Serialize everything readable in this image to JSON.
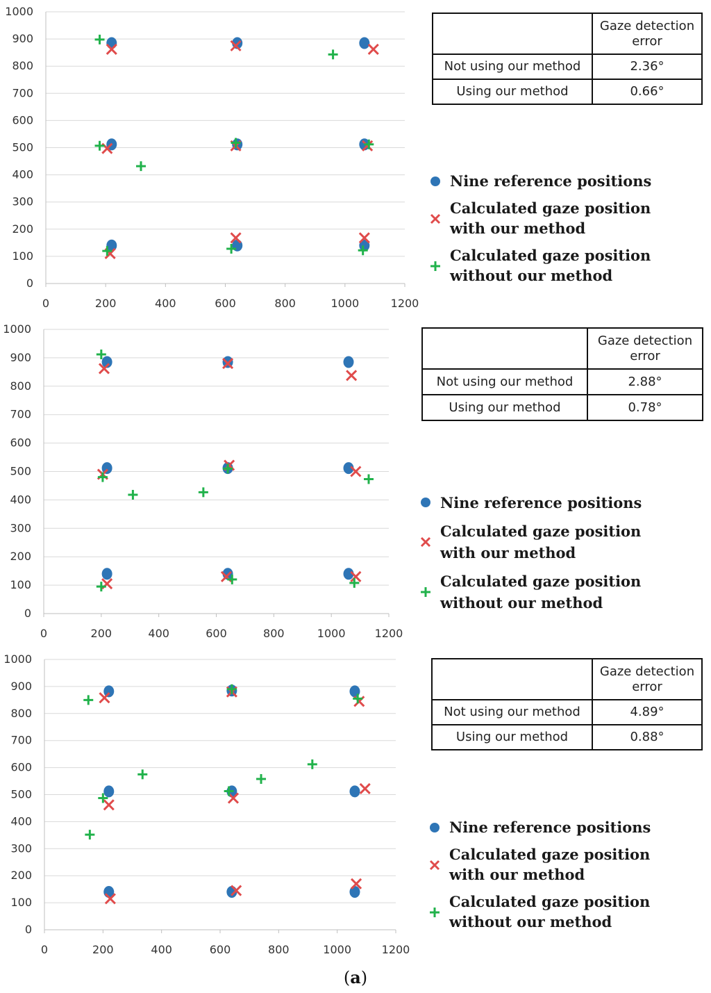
{
  "colors": {
    "reference": "#2e75b6",
    "with_method": "#e04b4b",
    "without_method": "#21b24b",
    "grid": "#d9d9d9",
    "axis": "#bfbfbf"
  },
  "legend": {
    "reference": "Nine reference positions",
    "with_method": "Calculated gaze position with our method",
    "without_method": "Calculated gaze position without our method"
  },
  "caption": {
    "label": "a"
  },
  "chart_data": [
    {
      "type": "scatter",
      "xlim": [
        0,
        1200
      ],
      "ylim": [
        0,
        1000
      ],
      "xticks": [
        "0",
        "200",
        "400",
        "600",
        "800",
        "1000",
        "1200"
      ],
      "yticks": [
        "0",
        "100",
        "200",
        "300",
        "400",
        "500",
        "600",
        "700",
        "800",
        "900",
        "1000"
      ],
      "grid": "horizontal",
      "series": [
        {
          "name": "Nine reference positions",
          "marker": "circle",
          "points": [
            [
              220,
              885
            ],
            [
              640,
              885
            ],
            [
              1065,
              885
            ],
            [
              220,
              512
            ],
            [
              640,
              512
            ],
            [
              1065,
              512
            ],
            [
              220,
              140
            ],
            [
              640,
              140
            ],
            [
              1065,
              140
            ]
          ]
        },
        {
          "name": "Calculated gaze position with our method",
          "marker": "x",
          "points": [
            [
              220,
              862
            ],
            [
              635,
              875
            ],
            [
              1095,
              862
            ],
            [
              205,
              497
            ],
            [
              635,
              507
            ],
            [
              1075,
              507
            ],
            [
              215,
              110
            ],
            [
              635,
              168
            ],
            [
              1065,
              168
            ]
          ]
        },
        {
          "name": "Calculated gaze position without our method",
          "marker": "plus",
          "points": [
            [
              180,
              898
            ],
            [
              960,
              843
            ],
            [
              180,
              507
            ],
            [
              318,
              432
            ],
            [
              635,
              518
            ],
            [
              1080,
              512
            ],
            [
              205,
              120
            ],
            [
              620,
              128
            ],
            [
              1060,
              122
            ]
          ]
        }
      ],
      "table": {
        "header": [
          "",
          "Gaze detection error"
        ],
        "rows": [
          [
            "Not using our method",
            "2.36°"
          ],
          [
            "Using our method",
            "0.66°"
          ]
        ]
      }
    },
    {
      "type": "scatter",
      "xlim": [
        0,
        1200
      ],
      "ylim": [
        0,
        1000
      ],
      "xticks": [
        "0",
        "200",
        "400",
        "600",
        "800",
        "1000",
        "1200"
      ],
      "yticks": [
        "0",
        "100",
        "200",
        "300",
        "400",
        "500",
        "600",
        "700",
        "800",
        "900",
        "1000"
      ],
      "grid": "horizontal",
      "series": [
        {
          "name": "Nine reference positions",
          "marker": "circle",
          "points": [
            [
              220,
              885
            ],
            [
              640,
              885
            ],
            [
              1060,
              885
            ],
            [
              220,
              512
            ],
            [
              640,
              512
            ],
            [
              1060,
              512
            ],
            [
              220,
              140
            ],
            [
              640,
              140
            ],
            [
              1060,
              140
            ]
          ]
        },
        {
          "name": "Calculated gaze position with our method",
          "marker": "x",
          "points": [
            [
              210,
              862
            ],
            [
              640,
              880
            ],
            [
              1070,
              838
            ],
            [
              205,
              490
            ],
            [
              645,
              522
            ],
            [
              1085,
              500
            ],
            [
              220,
              105
            ],
            [
              635,
              130
            ],
            [
              1085,
              130
            ]
          ]
        },
        {
          "name": "Calculated gaze position without our method",
          "marker": "plus",
          "points": [
            [
              200,
              912
            ],
            [
              205,
              480
            ],
            [
              310,
              418
            ],
            [
              555,
              427
            ],
            [
              640,
              510
            ],
            [
              1130,
              473
            ],
            [
              200,
              95
            ],
            [
              655,
              120
            ],
            [
              1080,
              108
            ]
          ]
        }
      ],
      "table": {
        "header": [
          "",
          "Gaze detection error"
        ],
        "rows": [
          [
            "Not using our method",
            "2.88°"
          ],
          [
            "Using our method",
            "0.78°"
          ]
        ]
      }
    },
    {
      "type": "scatter",
      "xlim": [
        0,
        1200
      ],
      "ylim": [
        0,
        1000
      ],
      "xticks": [
        "0",
        "200",
        "400",
        "600",
        "800",
        "1000",
        "1200"
      ],
      "yticks": [
        "0",
        "100",
        "200",
        "300",
        "400",
        "500",
        "600",
        "700",
        "800",
        "900",
        "1000"
      ],
      "grid": "horizontal",
      "series": [
        {
          "name": "Nine reference positions",
          "marker": "circle",
          "points": [
            [
              220,
              882
            ],
            [
              640,
              885
            ],
            [
              1060,
              882
            ],
            [
              220,
              512
            ],
            [
              640,
              512
            ],
            [
              1060,
              512
            ],
            [
              220,
              140
            ],
            [
              640,
              140
            ],
            [
              1060,
              140
            ]
          ]
        },
        {
          "name": "Calculated gaze position with our method",
          "marker": "x",
          "points": [
            [
              205,
              858
            ],
            [
              640,
              880
            ],
            [
              1075,
              845
            ],
            [
              220,
              462
            ],
            [
              645,
              487
            ],
            [
              1095,
              522
            ],
            [
              225,
              115
            ],
            [
              655,
              145
            ],
            [
              1065,
              170
            ]
          ]
        },
        {
          "name": "Calculated gaze position without our method",
          "marker": "plus",
          "points": [
            [
              150,
              850
            ],
            [
              640,
              890
            ],
            [
              1070,
              855
            ],
            [
              200,
              487
            ],
            [
              335,
              575
            ],
            [
              630,
              513
            ],
            [
              740,
              558
            ],
            [
              915,
              612
            ],
            [
              155,
              352
            ]
          ]
        }
      ],
      "table": {
        "header": [
          "",
          "Gaze detection error"
        ],
        "rows": [
          [
            "Not using our method",
            "4.89°"
          ],
          [
            "Using our method",
            "0.88°"
          ]
        ]
      }
    }
  ]
}
